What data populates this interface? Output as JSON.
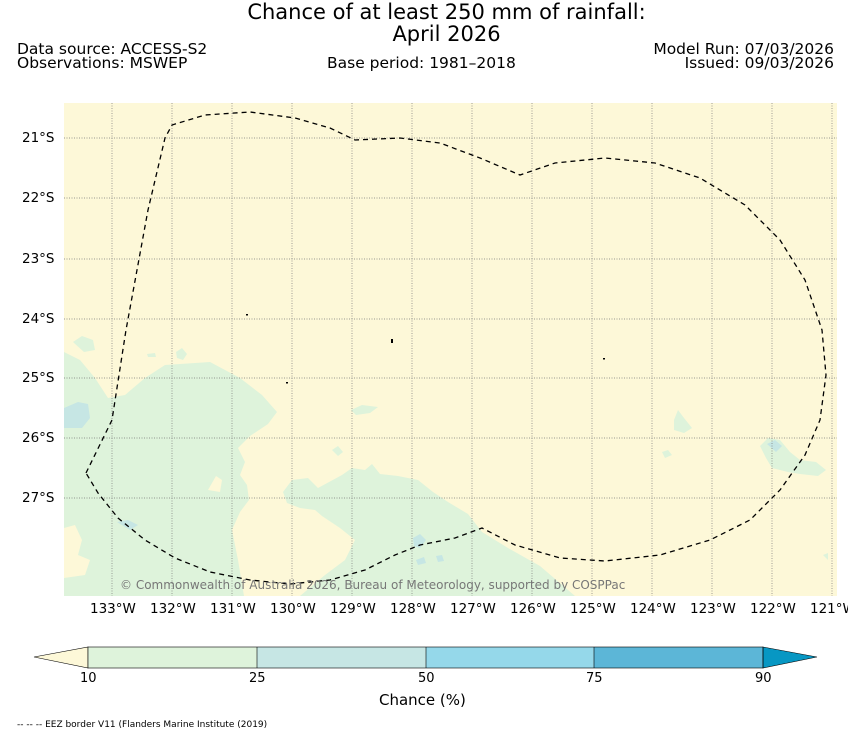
{
  "title": {
    "line1": "Chance of at least 250 mm of rainfall:",
    "line2": "April 2026"
  },
  "header": {
    "data_source": "Data source: ACCESS-S2",
    "observations": "Observations: MSWEP",
    "base_period": "Base period: 1981–2018",
    "model_run": "Model Run: 07/03/2026",
    "issued": "Issued: 09/03/2026"
  },
  "map": {
    "background_color": "#fdf8d8",
    "land_fill_color": "#def3db",
    "light_blue_color": "#c6e6e4",
    "copyright": "© Commonwealth of Australia 2026, Bureau of Meteorology, supported by COSPPac",
    "lat_labels": [
      "21°S",
      "22°S",
      "23°S",
      "24°S",
      "25°S",
      "26°S",
      "27°S"
    ],
    "lon_labels": [
      "133°W",
      "132°W",
      "131°W",
      "130°W",
      "129°W",
      "128°W",
      "127°W",
      "126°W",
      "125°W",
      "124°W",
      "123°W",
      "122°W",
      "121°W"
    ],
    "gridlines": true
  },
  "colorbar": {
    "label": "Chance (%)",
    "ticks": [
      "10",
      "25",
      "50",
      "75",
      "90"
    ],
    "colors": [
      "#fdf8d8",
      "#def3db",
      "#c6e6e4",
      "#95d8ea",
      "#5cb6d7",
      "#0797c3"
    ]
  },
  "footnote": "-- -- -- EEZ border V11 (Flanders Marine Institute (2019)"
}
